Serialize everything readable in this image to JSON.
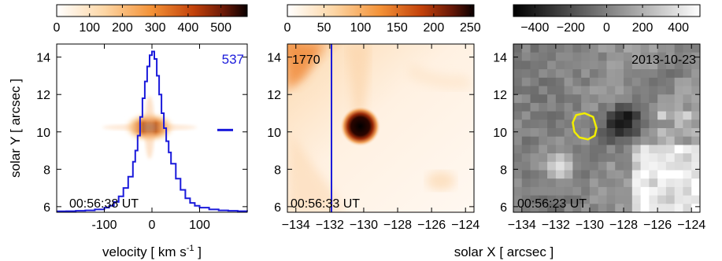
{
  "chart_data": [
    {
      "type": "line",
      "panel": "left",
      "colorbar": {
        "ticks": [
          "0",
          "100",
          "200",
          "300",
          "400",
          "500"
        ],
        "tick_values": [
          0,
          100,
          200,
          300,
          400,
          500
        ],
        "range": [
          0,
          580
        ],
        "colormap": "white-orange-black"
      },
      "xlabel": "velocity [ km s",
      "xlabel_sup": "-1",
      "xlabel_end": " ]",
      "ylabel": "solar Y [ arcsec ]",
      "xlim": [
        -200,
        200
      ],
      "ylim": [
        5.7,
        14.7
      ],
      "xticks": [
        "-100",
        "0",
        "100"
      ],
      "xtick_values": [
        -100,
        0,
        100
      ],
      "yticks": [
        "6",
        "8",
        "10",
        "12",
        "14"
      ],
      "ytick_values": [
        6,
        8,
        10,
        12,
        14
      ],
      "annotations": {
        "time": "00:56:38 UT",
        "peak_label": "537"
      },
      "line_color": "#1a1adb",
      "marker": {
        "x": 200,
        "y": 10.1
      },
      "series": [
        {
          "x": [
            -200,
            -180,
            -160,
            -140,
            -120,
            -100,
            -90,
            -80,
            -70,
            -60,
            -50,
            -40,
            -35,
            -30,
            -25,
            -20,
            -15,
            -10,
            -5,
            0,
            5,
            10,
            15,
            20,
            25,
            30,
            35,
            40,
            50,
            60,
            70,
            80,
            90,
            100,
            120,
            140,
            160,
            180,
            200
          ],
          "y": [
            5.75,
            5.76,
            5.78,
            5.8,
            5.85,
            5.95,
            6.05,
            6.25,
            6.55,
            7.0,
            7.6,
            8.4,
            9.0,
            9.8,
            10.8,
            11.8,
            12.7,
            13.5,
            14.1,
            14.3,
            13.9,
            13.0,
            12.0,
            11.0,
            10.2,
            9.5,
            8.9,
            8.3,
            7.5,
            6.9,
            6.45,
            6.2,
            6.05,
            5.95,
            5.85,
            5.8,
            5.78,
            5.76,
            5.75
          ]
        }
      ]
    },
    {
      "type": "heatmap",
      "panel": "middle",
      "colorbar": {
        "ticks": [
          "0",
          "50",
          "100",
          "150",
          "200",
          "250"
        ],
        "tick_values": [
          0,
          50,
          100,
          150,
          200,
          250
        ],
        "range": [
          0,
          255
        ],
        "colormap": "white-orange-black"
      },
      "xlabel": "solar X [ arcsec ]",
      "xlim": [
        -134.5,
        -123.5
      ],
      "ylim": [
        5.7,
        14.7
      ],
      "xticks": [
        "−134",
        "−132",
        "−130",
        "−128",
        "−126",
        "−124"
      ],
      "xtick_values": [
        -134,
        -132,
        -130,
        -128,
        -126,
        -124
      ],
      "yticks": [
        "6",
        "8",
        "10",
        "12",
        "14"
      ],
      "ytick_values": [
        6,
        8,
        10,
        12,
        14
      ],
      "annotations": {
        "time": "00:56:33 UT",
        "label": "1770"
      },
      "slit_x": -131.9,
      "slit_color": "#1a1adb",
      "blob": {
        "x": -130.2,
        "y": 10.3
      }
    },
    {
      "type": "heatmap",
      "panel": "right",
      "colorbar": {
        "ticks": [
          "−400",
          "−200",
          "0",
          "200",
          "400"
        ],
        "tick_values": [
          -400,
          -200,
          0,
          200,
          400
        ],
        "range": [
          -520,
          520
        ],
        "colormap": "grayscale"
      },
      "xlim": [
        -134.5,
        -123.5
      ],
      "ylim": [
        5.7,
        14.7
      ],
      "xticks": [
        "−134",
        "−132",
        "−130",
        "−128",
        "−126",
        "−124"
      ],
      "xtick_values": [
        -134,
        -132,
        -130,
        -128,
        -126,
        -124
      ],
      "yticks": [
        "6",
        "8",
        "10",
        "12",
        "14"
      ],
      "ytick_values": [
        6,
        8,
        10,
        12,
        14
      ],
      "annotations": {
        "time": "00:56:23 UT",
        "date": "2013-10-23"
      },
      "contour_color": "#f2ee00",
      "contour": {
        "x": [
          -130.8,
          -130.3,
          -129.8,
          -129.6,
          -129.7,
          -130.1,
          -130.6,
          -130.9,
          -131.0,
          -130.8
        ],
        "y": [
          10.9,
          11.0,
          10.8,
          10.2,
          9.8,
          9.6,
          9.7,
          10.0,
          10.5,
          10.9
        ]
      }
    }
  ]
}
